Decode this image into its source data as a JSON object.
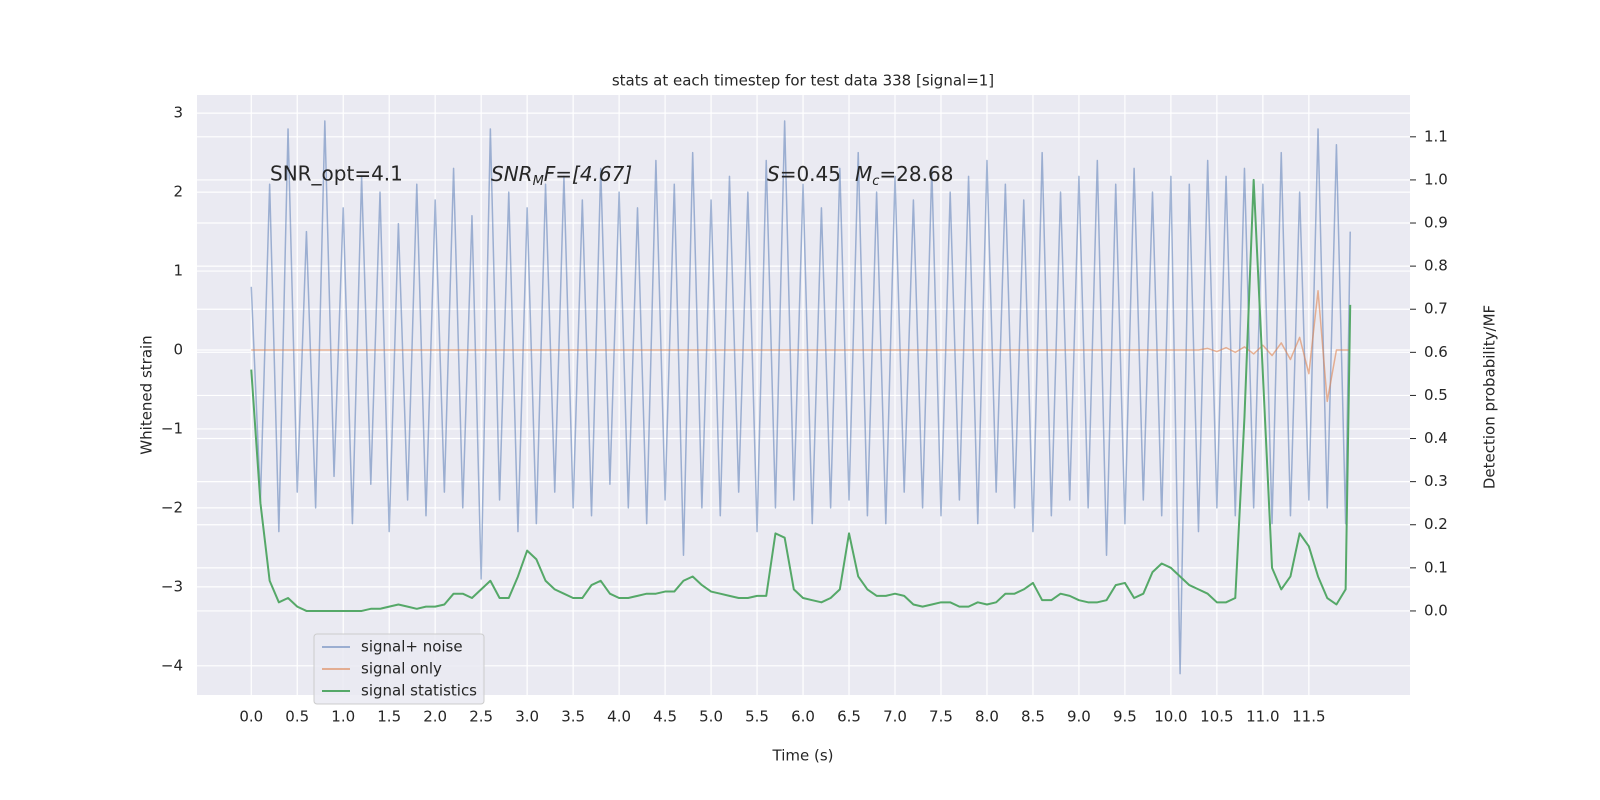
{
  "chart_data": {
    "type": "line",
    "title": "stats at each timestep for test data 338 [signal=1]",
    "xlabel": "Time (s)",
    "ylabel": "Whitened strain",
    "y2label": "Detection probability/MF",
    "annotations": [
      [
        "SNR_opt=4.1"
      ],
      [
        "SNR",
        "M",
        "F=[4.67]"
      ],
      [
        "S",
        "=0.45",
        "M",
        "c",
        "=28.68"
      ]
    ],
    "x": [
      0.0,
      0.1,
      0.2,
      0.3,
      0.4,
      0.5,
      0.6,
      0.7,
      0.8,
      0.9,
      1.0,
      1.1,
      1.2,
      1.3,
      1.4,
      1.5,
      1.6,
      1.7,
      1.8,
      1.9,
      2.0,
      2.1,
      2.2,
      2.3,
      2.4,
      2.5,
      2.6,
      2.7,
      2.8,
      2.9,
      3.0,
      3.1,
      3.2,
      3.3,
      3.4,
      3.5,
      3.6,
      3.7,
      3.8,
      3.9,
      4.0,
      4.1,
      4.2,
      4.3,
      4.4,
      4.5,
      4.6,
      4.7,
      4.8,
      4.9,
      5.0,
      5.1,
      5.2,
      5.3,
      5.4,
      5.5,
      5.6,
      5.7,
      5.8,
      5.9,
      6.0,
      6.1,
      6.2,
      6.3,
      6.4,
      6.5,
      6.6,
      6.7,
      6.8,
      6.9,
      7.0,
      7.1,
      7.2,
      7.3,
      7.4,
      7.5,
      7.6,
      7.7,
      7.8,
      7.9,
      8.0,
      8.1,
      8.2,
      8.3,
      8.4,
      8.5,
      8.6,
      8.7,
      8.8,
      8.9,
      9.0,
      9.1,
      9.2,
      9.3,
      9.4,
      9.5,
      9.6,
      9.7,
      9.8,
      9.9,
      10.0,
      10.1,
      10.2,
      10.3,
      10.4,
      10.5,
      10.6,
      10.7,
      10.8,
      10.9,
      11.0,
      11.1,
      11.2,
      11.3,
      11.4,
      11.5,
      11.6,
      11.7,
      11.8,
      11.9,
      11.95
    ],
    "series": [
      {
        "name": "signal+ noise",
        "color": "#4c72b0",
        "axis": "y",
        "values": [
          0.8,
          -1.9,
          2.1,
          -2.3,
          2.8,
          -1.8,
          1.5,
          -2.0,
          2.9,
          -1.6,
          1.8,
          -2.2,
          2.2,
          -1.7,
          2.0,
          -2.3,
          1.6,
          -1.9,
          2.1,
          -2.1,
          1.9,
          -1.8,
          2.3,
          -2.0,
          1.7,
          -2.9,
          2.8,
          -1.9,
          2.0,
          -2.3,
          1.8,
          -2.2,
          2.1,
          -1.8,
          2.2,
          -2.0,
          1.9,
          -2.1,
          2.3,
          -1.7,
          2.0,
          -2.0,
          1.8,
          -2.2,
          2.4,
          -1.9,
          2.1,
          -2.6,
          2.5,
          -2.0,
          1.9,
          -2.1,
          2.2,
          -1.8,
          2.0,
          -2.3,
          2.4,
          -2.0,
          2.9,
          -1.9,
          2.1,
          -2.2,
          1.8,
          -2.0,
          2.3,
          -1.9,
          2.5,
          -2.1,
          2.0,
          -2.2,
          2.2,
          -1.8,
          1.9,
          -2.0,
          2.3,
          -2.1,
          2.0,
          -1.9,
          2.2,
          -2.2,
          2.4,
          -1.8,
          2.1,
          -2.0,
          1.9,
          -2.3,
          2.5,
          -2.1,
          2.0,
          -1.9,
          2.2,
          -2.0,
          2.4,
          -2.6,
          2.1,
          -2.2,
          2.3,
          -1.9,
          2.0,
          -2.1,
          2.2,
          -4.1,
          2.1,
          -2.3,
          2.4,
          -2.0,
          2.2,
          -2.1,
          2.3,
          -2.0,
          2.1,
          -2.2,
          2.5,
          -2.1,
          2.0,
          -1.9,
          2.8,
          -2.0,
          2.6,
          -2.2,
          1.5
        ],
        "style": "solid"
      },
      {
        "name": "signal only",
        "color": "#dd8452",
        "axis": "y",
        "values": [
          0.0,
          0.0,
          0.0,
          0.0,
          0.0,
          0.0,
          0.0,
          0.0,
          0.0,
          0.0,
          0.0,
          0.0,
          0.0,
          0.0,
          0.0,
          0.0,
          0.0,
          0.0,
          0.0,
          0.0,
          0.0,
          0.0,
          0.0,
          0.0,
          0.0,
          0.0,
          0.0,
          0.0,
          0.0,
          0.0,
          0.0,
          0.0,
          0.0,
          0.0,
          0.0,
          0.0,
          0.0,
          0.0,
          0.0,
          0.0,
          0.0,
          0.0,
          0.0,
          0.0,
          0.0,
          0.0,
          0.0,
          0.0,
          0.0,
          0.0,
          0.0,
          0.0,
          0.0,
          0.0,
          0.0,
          0.0,
          0.0,
          0.0,
          0.0,
          0.0,
          0.0,
          0.0,
          0.0,
          0.0,
          0.0,
          0.0,
          0.0,
          0.0,
          0.0,
          0.0,
          0.0,
          0.0,
          0.0,
          0.0,
          0.0,
          0.0,
          0.0,
          0.0,
          0.0,
          0.0,
          0.0,
          0.0,
          0.0,
          0.0,
          0.0,
          0.0,
          0.0,
          0.0,
          0.0,
          0.0,
          0.0,
          0.0,
          0.0,
          0.0,
          0.0,
          0.0,
          0.0,
          0.0,
          0.0,
          0.0,
          0.0,
          0.0,
          0.0,
          0.0,
          0.02,
          -0.02,
          0.03,
          -0.03,
          0.04,
          -0.05,
          0.06,
          -0.07,
          0.09,
          -0.12,
          0.16,
          -0.3,
          0.75,
          -0.65,
          0.0,
          0.0,
          0.0
        ]
      },
      {
        "name": "signal statistics",
        "color": "#55a868",
        "axis": "y2",
        "values": [
          0.56,
          0.25,
          0.07,
          0.02,
          0.03,
          0.01,
          0.0,
          0.0,
          0.0,
          0.0,
          0.0,
          0.0,
          0.0,
          0.005,
          0.005,
          0.01,
          0.015,
          0.01,
          0.005,
          0.01,
          0.01,
          0.015,
          0.04,
          0.04,
          0.03,
          0.05,
          0.07,
          0.03,
          0.03,
          0.08,
          0.14,
          0.12,
          0.07,
          0.05,
          0.04,
          0.03,
          0.03,
          0.06,
          0.07,
          0.04,
          0.03,
          0.03,
          0.035,
          0.04,
          0.04,
          0.045,
          0.045,
          0.07,
          0.08,
          0.06,
          0.045,
          0.04,
          0.035,
          0.03,
          0.03,
          0.035,
          0.035,
          0.18,
          0.17,
          0.05,
          0.03,
          0.025,
          0.02,
          0.03,
          0.05,
          0.18,
          0.08,
          0.05,
          0.035,
          0.035,
          0.04,
          0.035,
          0.015,
          0.01,
          0.015,
          0.02,
          0.02,
          0.01,
          0.01,
          0.02,
          0.015,
          0.02,
          0.04,
          0.04,
          0.05,
          0.065,
          0.025,
          0.025,
          0.04,
          0.035,
          0.025,
          0.02,
          0.02,
          0.025,
          0.06,
          0.065,
          0.03,
          0.04,
          0.09,
          0.11,
          0.1,
          0.08,
          0.06,
          0.05,
          0.04,
          0.02,
          0.02,
          0.03,
          0.45,
          1.0,
          0.55,
          0.1,
          0.05,
          0.08,
          0.18,
          0.15,
          0.08,
          0.03,
          0.015,
          0.05,
          0.71
        ]
      }
    ],
    "xlim": [
      -0.59,
      12.6
    ],
    "ylim": [
      -4.37,
      3.23
    ],
    "y2lim": [
      -0.195,
      1.197
    ],
    "xticks": [
      {
        "value": 0,
        "label": "0.0"
      },
      {
        "value": 0.5,
        "label": "0.5"
      },
      {
        "value": 1,
        "label": "1.0"
      },
      {
        "value": 1.5,
        "label": "1.5"
      },
      {
        "value": 2,
        "label": "2.0"
      },
      {
        "value": 2.5,
        "label": "2.5"
      },
      {
        "value": 3,
        "label": "3.0"
      },
      {
        "value": 3.5,
        "label": "3.5"
      },
      {
        "value": 4,
        "label": "4.0"
      },
      {
        "value": 4.5,
        "label": "4.5"
      },
      {
        "value": 5,
        "label": "5.0"
      },
      {
        "value": 5.5,
        "label": "5.5"
      },
      {
        "value": 6,
        "label": "6.0"
      },
      {
        "value": 6.5,
        "label": "6.5"
      },
      {
        "value": 7,
        "label": "7.0"
      },
      {
        "value": 7.5,
        "label": "7.5"
      },
      {
        "value": 8,
        "label": "8.0"
      },
      {
        "value": 8.5,
        "label": "8.5"
      },
      {
        "value": 9,
        "label": "9.0"
      },
      {
        "value": 9.5,
        "label": "9.5"
      },
      {
        "value": 10,
        "label": "10.0"
      },
      {
        "value": 10.5,
        "label": "10.5"
      },
      {
        "value": 11,
        "label": "11.0"
      },
      {
        "value": 11.5,
        "label": "11.5"
      }
    ],
    "yticks": [
      {
        "value": -4,
        "label": "−4"
      },
      {
        "value": -3,
        "label": "−3"
      },
      {
        "value": -2,
        "label": "−2"
      },
      {
        "value": -1,
        "label": "−1"
      },
      0,
      1,
      2,
      3
    ],
    "y2ticks": [
      {
        "value": 0,
        "label": "0.0"
      },
      {
        "value": 0.1,
        "label": "0.1"
      },
      {
        "value": 0.2,
        "label": "0.2"
      },
      {
        "value": 0.3,
        "label": "0.3"
      },
      {
        "value": 0.4,
        "label": "0.4"
      },
      {
        "value": 0.5,
        "label": "0.5"
      },
      {
        "value": 0.6,
        "label": "0.6"
      },
      {
        "value": 0.7,
        "label": "0.7"
      },
      {
        "value": 0.8,
        "label": "0.8"
      },
      {
        "value": 0.9,
        "label": "0.9"
      },
      {
        "value": 1,
        "label": "1.0"
      },
      {
        "value": 1.1,
        "label": "1.1"
      }
    ],
    "grid": true,
    "legend": "lower left"
  }
}
